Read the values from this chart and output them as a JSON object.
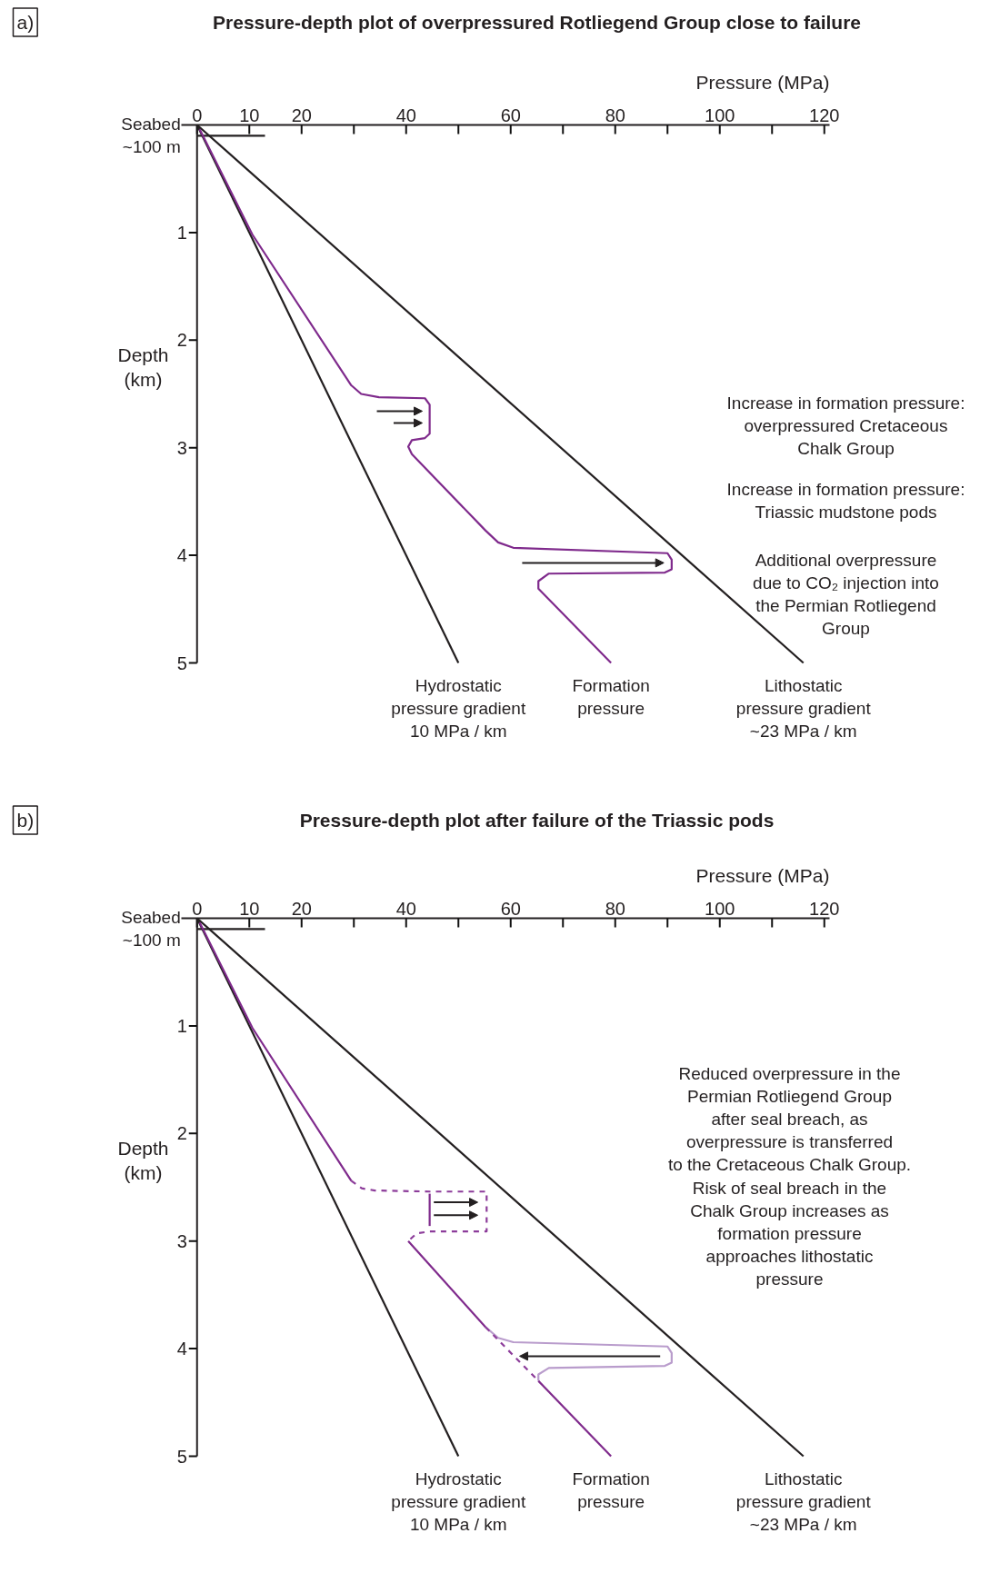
{
  "chart_data": [
    {
      "type": "line",
      "title": "Pressure-depth plot of overpressured Rotliegend Group close to failure",
      "xlabel": "Pressure (MPa)",
      "ylabel": "Depth\n(km)",
      "xlim": [
        -3,
        121
      ],
      "xticks": [
        0,
        10,
        20,
        {
          "value": 30,
          "label": null
        },
        40,
        {
          "value": 50,
          "label": null
        },
        60,
        {
          "value": 70,
          "label": null
        },
        80,
        {
          "value": 90,
          "label": null
        },
        100,
        {
          "value": 110,
          "label": null
        },
        120
      ],
      "ylim": [
        5,
        0
      ],
      "yticks": [
        1,
        2,
        3,
        4,
        5
      ],
      "annotations": [
        "a)",
        {
          "text": "Seabed\n~100 m",
          "x": 0,
          "y": 0.1
        },
        "Increase in formation pressure:\noverpressured Cretaceous\nChalk Group",
        "Increase in formation pressure:\nTriassic mudstone pods",
        "Additional overpressure\ndue to CO₂ injection into\nthe Permian Rotliegend\nGroup"
      ],
      "series": [
        {
          "name": "Hydrostatic\npressure gradient\n10 MPa / km",
          "color": "#231f20",
          "x": [
            0,
            50
          ],
          "values": [
            0,
            5
          ]
        },
        {
          "name": "Lithostatic\npressure gradient\n~23 MPa / km",
          "color": "#231f20",
          "x": [
            0,
            116
          ],
          "values": [
            0,
            5
          ]
        },
        {
          "color": "#231f20",
          "x": [
            0,
            13
          ],
          "values": [
            0.1,
            0.1
          ]
        },
        {
          "name": "Formation\npressure",
          "color": "#7f2a8c",
          "x": [
            0.5,
            10.6,
            29.5,
            31.4,
            34.8,
            43.6,
            44.5,
            44.5,
            43.6,
            41.1,
            40.4,
            41.1,
            55.2,
            57.6,
            60.5,
            90,
            90.8,
            90.8,
            89.5,
            67.3,
            65.3,
            65.3,
            79.2
          ],
          "values": [
            0.04,
            1.02,
            2.42,
            2.5,
            2.53,
            2.54,
            2.6,
            2.87,
            2.91,
            2.93,
            2.99,
            3.06,
            3.77,
            3.88,
            3.93,
            3.98,
            4.04,
            4.13,
            4.16,
            4.17,
            4.24,
            4.31,
            5.0
          ]
        }
      ]
    },
    {
      "type": "line",
      "title": "Pressure-depth plot after failure of the Triassic pods",
      "xlabel": "Pressure (MPa)",
      "ylabel": "Depth\n(km)",
      "xlim": [
        -3,
        121
      ],
      "xticks": [
        0,
        10,
        20,
        {
          "value": 30,
          "label": null
        },
        40,
        {
          "value": 50,
          "label": null
        },
        60,
        {
          "value": 70,
          "label": null
        },
        80,
        {
          "value": 90,
          "label": null
        },
        100,
        {
          "value": 110,
          "label": null
        },
        120
      ],
      "ylim": [
        5,
        0
      ],
      "yticks": [
        1,
        2,
        3,
        4,
        5
      ],
      "annotations": [
        "b)",
        {
          "text": "Seabed\n~100 m",
          "x": 0,
          "y": 0.1
        },
        "Reduced overpressure in the\nPermian Rotliegend Group\nafter seal breach, as\noverpressure is transferred\nto the Cretaceous Chalk Group.\nRisk of seal breach in the\nChalk Group increases as\nformation pressure\napproaches lithostatic\npressure"
      ],
      "series": [
        {
          "name": "Hydrostatic\npressure gradient\n10 MPa / km",
          "color": "#231f20",
          "x": [
            0,
            50
          ],
          "values": [
            0,
            5
          ]
        },
        {
          "name": "Lithostatic\npressure gradient\n~23 MPa / km",
          "color": "#231f20",
          "x": [
            0,
            116
          ],
          "values": [
            0,
            5
          ]
        },
        {
          "color": "#231f20",
          "x": [
            0,
            13
          ],
          "values": [
            0.1,
            0.1
          ]
        },
        {
          "color": "#b99ccc",
          "x": [
            55.2,
            57.6,
            60.5,
            90,
            90.8,
            90.8,
            89.5,
            67.3,
            65.3,
            65.3
          ],
          "values": [
            3.8,
            3.9,
            3.94,
            3.98,
            4.04,
            4.13,
            4.16,
            4.18,
            4.24,
            4.3
          ]
        },
        {
          "color": "#8c3c9a",
          "line_style": "dashed",
          "x": [
            29.5,
            31.5,
            34,
            44.5,
            55.4,
            55.4,
            44.5,
            42,
            40.4,
            null,
            55.2,
            65.3
          ],
          "values": [
            2.44,
            2.51,
            2.53,
            2.54,
            2.54,
            2.91,
            2.91,
            2.93,
            3.0,
            null,
            3.8,
            4.3
          ]
        },
        {
          "name": "Formation\npressure",
          "color": "#7f2a8c",
          "x": [
            0.5,
            10.6,
            29.5,
            null,
            44.5,
            44.5,
            null,
            40.4,
            55.2,
            null,
            65.3,
            79.2
          ],
          "values": [
            0.04,
            1.02,
            2.44,
            null,
            2.56,
            2.86,
            null,
            3.0,
            3.8,
            null,
            4.3,
            5.0
          ]
        }
      ]
    }
  ]
}
